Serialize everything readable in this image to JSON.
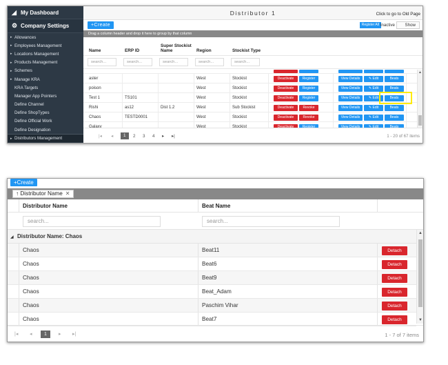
{
  "sidebar": {
    "dashboard_label": "My Dashboard",
    "company_label": "Company Settings",
    "items": [
      {
        "label": "Allowances",
        "caret": true
      },
      {
        "label": "Employees Management",
        "caret": true
      },
      {
        "label": "Locations Management",
        "caret": true
      },
      {
        "label": "Products Management",
        "caret": true
      },
      {
        "label": "Schemes",
        "caret": true
      },
      {
        "label": "Manage KRA",
        "caret": true
      },
      {
        "label": "KRA Targets",
        "caret": false
      },
      {
        "label": "Manager App Pointers",
        "caret": false
      },
      {
        "label": "Define Channel",
        "caret": false
      },
      {
        "label": "Define ShopTypes",
        "caret": false
      },
      {
        "label": "Define Official Work",
        "caret": false
      },
      {
        "label": "Define Designation",
        "caret": false
      },
      {
        "label": "Distributors Management",
        "caret": true,
        "active": true
      }
    ]
  },
  "top": {
    "title": "Distributor 1",
    "old_page_link": "Click to go to Old Page",
    "create_label": "+Create",
    "register_all_label": "Register All",
    "inactive_label": "Inactive",
    "show_label": "Show",
    "group_hint": "Drag a column header and drop it here to group by that column"
  },
  "grid1": {
    "columns": [
      "Name",
      "ERP ID",
      "Super Stockist Name",
      "Region",
      "Stockist Type"
    ],
    "filter_placeholder": "search...",
    "rows": [
      {
        "name": "aster",
        "erp": "",
        "super": "",
        "region": "West",
        "type": "Stockist",
        "status_btn": "Deactivate",
        "action_btn": "Register"
      },
      {
        "name": "poison",
        "erp": "",
        "super": "",
        "region": "West",
        "type": "Stockist",
        "status_btn": "Deactivate",
        "action_btn": "Register"
      },
      {
        "name": "Test 1",
        "erp": "TS101",
        "super": "",
        "region": "West",
        "type": "Stockist",
        "status_btn": "Deactivate",
        "action_btn": "Register"
      },
      {
        "name": "Rishi",
        "erp": "as12",
        "super": "Dist 1.2",
        "region": "West",
        "type": "Sub Stockist",
        "status_btn": "Deactivate",
        "action_btn": "Revoke"
      },
      {
        "name": "Chaos",
        "erp": "TESTD0001",
        "super": "",
        "region": "West",
        "type": "Stockist",
        "status_btn": "Deactivate",
        "action_btn": "Revoke"
      },
      {
        "name": "Galaxy",
        "erp": "",
        "super": "",
        "region": "West",
        "type": "Stockist",
        "status_btn": "Deactivate",
        "action_btn": "Register"
      }
    ],
    "view_details_label": "View Details",
    "edit_label": "Edit",
    "beats_label": "Beats",
    "pages": [
      "1",
      "2",
      "3",
      "4"
    ],
    "pager_info": "1 - 20 of 67 items"
  },
  "panel2": {
    "create_label": "+Create",
    "group_chip_label": "↑ Distributor Name",
    "columns": [
      "Distributor Name",
      "Beat Name"
    ],
    "filter_placeholder": "search...",
    "group_row_label": "Distributor Name: Chaos",
    "rows": [
      {
        "distributor": "Chaos",
        "beat": "Beat11"
      },
      {
        "distributor": "Chaos",
        "beat": "Beat6"
      },
      {
        "distributor": "Chaos",
        "beat": "Beat9"
      },
      {
        "distributor": "Chaos",
        "beat": "Beat_Adam"
      },
      {
        "distributor": "Chaos",
        "beat": "Paschim Vihar"
      },
      {
        "distributor": "Chaos",
        "beat": "Beat7"
      }
    ],
    "detach_label": "Detach",
    "current_page": "1",
    "pager_info": "1 - 7 of 7 items"
  },
  "colors": {
    "primary": "#2196f3",
    "danger": "#d9262d",
    "sidebar": "#2d3945",
    "highlight": "#ffeb00"
  }
}
